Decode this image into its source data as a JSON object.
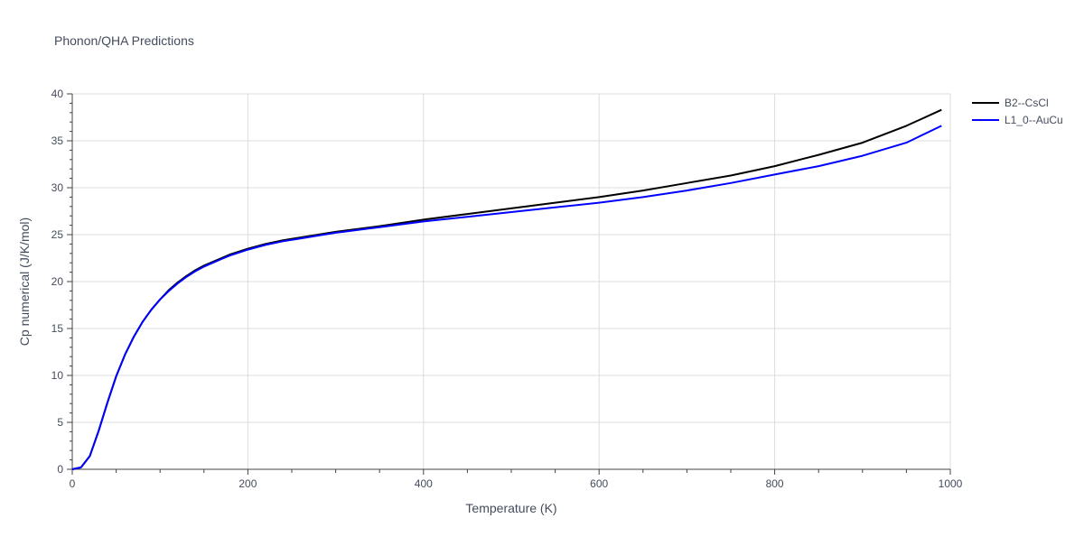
{
  "chart_data": {
    "type": "line",
    "title": "Phonon/QHA Predictions",
    "xlabel": "Temperature (K)",
    "ylabel": "Cp numerical (J/K/mol)",
    "xlim": [
      0,
      1000
    ],
    "ylim": [
      0,
      40
    ],
    "x_ticks": [
      0,
      200,
      400,
      600,
      800,
      1000
    ],
    "x_tick_labels": [
      "0",
      "200",
      "400",
      "600",
      "800",
      "1000"
    ],
    "y_ticks": [
      0,
      5,
      10,
      15,
      20,
      25,
      30,
      35,
      40
    ],
    "y_tick_labels": [
      "0",
      "5",
      "10",
      "15",
      "20",
      "25",
      "30",
      "35",
      "40"
    ],
    "grid": true,
    "legend_position": "top-right",
    "series": [
      {
        "name": "B2--CsCl",
        "color": "#000000",
        "x": [
          0,
          10,
          20,
          30,
          40,
          50,
          60,
          70,
          80,
          90,
          100,
          110,
          120,
          130,
          140,
          150,
          160,
          170,
          180,
          190,
          200,
          220,
          240,
          260,
          280,
          300,
          350,
          400,
          450,
          500,
          550,
          600,
          650,
          700,
          750,
          800,
          850,
          900,
          950,
          990
        ],
        "y": [
          0,
          0.2,
          1.4,
          4.1,
          7.1,
          9.9,
          12.2,
          14.1,
          15.7,
          17.0,
          18.1,
          19.1,
          19.9,
          20.6,
          21.2,
          21.7,
          22.1,
          22.5,
          22.9,
          23.2,
          23.5,
          24.0,
          24.4,
          24.7,
          25.0,
          25.3,
          25.9,
          26.6,
          27.2,
          27.8,
          28.4,
          29.0,
          29.7,
          30.5,
          31.3,
          32.3,
          33.5,
          34.8,
          36.6,
          38.3
        ]
      },
      {
        "name": "L1_0--AuCu",
        "color": "#0000ff",
        "x": [
          0,
          10,
          20,
          30,
          40,
          50,
          60,
          70,
          80,
          90,
          100,
          110,
          120,
          130,
          140,
          150,
          160,
          170,
          180,
          190,
          200,
          220,
          240,
          260,
          280,
          300,
          350,
          400,
          450,
          500,
          550,
          600,
          650,
          700,
          750,
          800,
          850,
          900,
          950,
          990
        ],
        "y": [
          0,
          0.2,
          1.4,
          4.1,
          7.1,
          9.9,
          12.2,
          14.1,
          15.7,
          17.0,
          18.1,
          19.0,
          19.8,
          20.5,
          21.1,
          21.6,
          22.0,
          22.4,
          22.8,
          23.1,
          23.4,
          23.9,
          24.3,
          24.6,
          24.9,
          25.2,
          25.8,
          26.4,
          26.9,
          27.4,
          27.9,
          28.4,
          29.0,
          29.7,
          30.5,
          31.4,
          32.3,
          33.4,
          34.8,
          36.6
        ]
      }
    ]
  }
}
